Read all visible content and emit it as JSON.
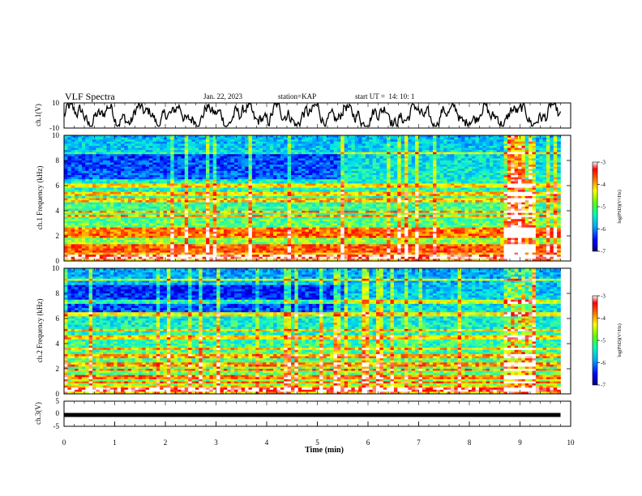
{
  "header": {
    "title": "VLF Spectra",
    "date": "Jan. 22, 2023",
    "station": "station=KAP",
    "start": "start UT =  14: 10: 1"
  },
  "colors": {
    "colormap": [
      "#000078",
      "#0000ff",
      "#0078ff",
      "#00d2ff",
      "#32ff96",
      "#b4ff32",
      "#ffff00",
      "#ff7800",
      "#ff0000",
      "#ffffff"
    ]
  },
  "chart_data": [
    {
      "type": "line",
      "name": "ch1-waveform",
      "ylabel": "ch.1(V)",
      "ylim": [
        -10,
        10
      ],
      "yticks": [
        "10",
        "-10"
      ],
      "xlim": [
        0,
        10
      ],
      "description_series": "waveform fluctuating roughly between -8 V and +9 V over 0 to 9.8 min"
    },
    {
      "type": "heatmap",
      "name": "ch1-spectrogram",
      "ylabel": "ch.1 Frequency (kHz)",
      "ylim": [
        0,
        10
      ],
      "yticks": [
        "0",
        "2",
        "4",
        "6",
        "8",
        "10"
      ],
      "xlim": [
        0,
        10
      ],
      "data_extent_min": 9.8,
      "colorbar": {
        "label": "log(PSD)(V²/Hz)",
        "ticks": [
          "-3",
          "-4",
          "-5",
          "-6",
          "-7"
        ],
        "range": [
          -7,
          -3
        ]
      },
      "lines_khz": [
        0.3,
        0.8,
        1.2,
        2.0,
        2.2,
        2.5,
        3.6,
        3.9,
        4.8,
        5.3,
        5.9,
        6.1,
        8.6
      ],
      "burst_min": [
        8.65,
        9.3
      ]
    },
    {
      "type": "heatmap",
      "name": "ch2-spectrogram",
      "ylabel": "ch.2 Frequency (kHz)",
      "ylim": [
        0,
        10
      ],
      "yticks": [
        "0",
        "2",
        "4",
        "6",
        "8",
        "10"
      ],
      "xlim": [
        0,
        10
      ],
      "data_extent_min": 9.8,
      "colorbar": {
        "label": "log(PSD)(V²/Hz)",
        "ticks": [
          "-3",
          "-4",
          "-5",
          "-6",
          "-7"
        ],
        "range": [
          -7,
          -3
        ]
      },
      "lines_khz": [
        0.3,
        0.9,
        1.3,
        1.9,
        2.3,
        3.0,
        3.6,
        4.5,
        5.1,
        6.3,
        7.3,
        9.1
      ],
      "burst_min": [
        8.65,
        9.3
      ]
    },
    {
      "type": "line",
      "name": "ch3-waveform",
      "ylabel": "ch.3(V)",
      "ylim": [
        -5,
        5
      ],
      "yticks": [
        "5",
        "0",
        "-5"
      ],
      "xlim": [
        0,
        10
      ],
      "xticks": [
        "0",
        "1",
        "2",
        "3",
        "4",
        "5",
        "6",
        "7",
        "8",
        "9",
        "10"
      ],
      "xlabel": "Time (min)",
      "level_v": -0.5
    }
  ]
}
